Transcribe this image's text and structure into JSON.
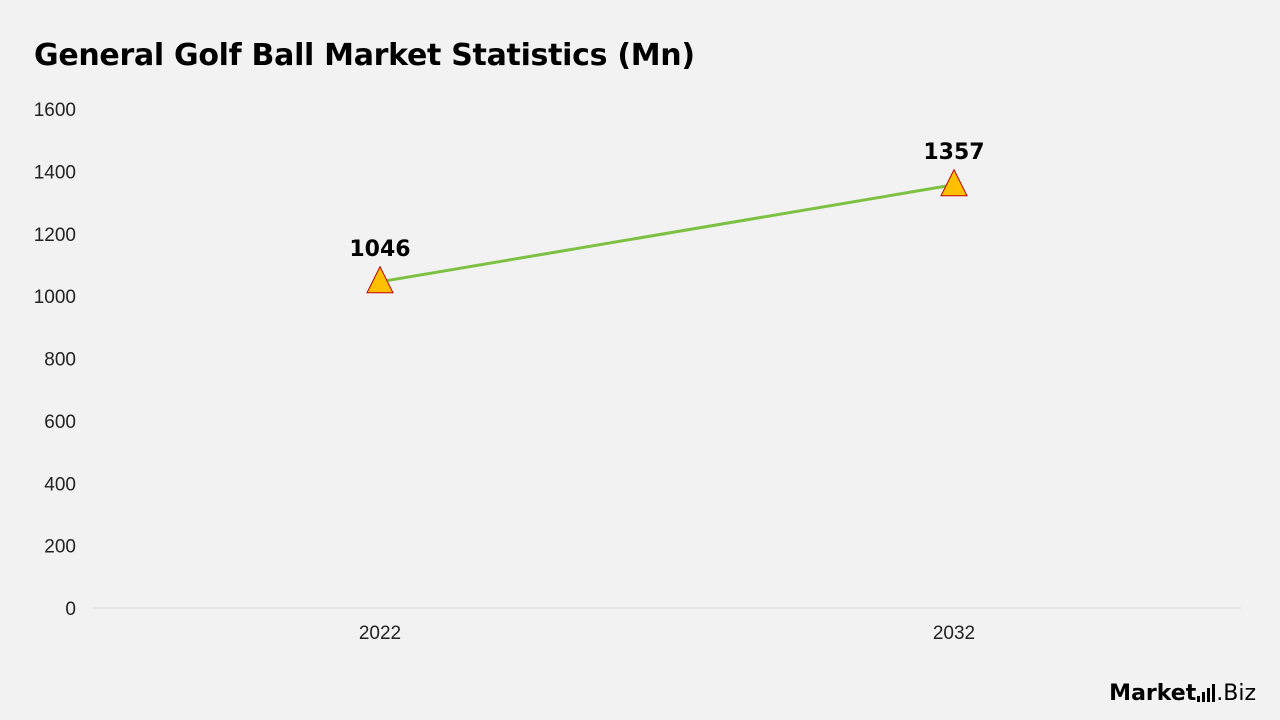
{
  "chart_data": {
    "type": "line",
    "title": "General Golf Ball Market Statistics (Mn)",
    "categories": [
      "2022",
      "2032"
    ],
    "series": [
      {
        "values": [
          1046,
          1357
        ],
        "color": "#7cc142",
        "marker": "triangle",
        "marker_fill": "#ffc000",
        "marker_stroke": "#c00000"
      }
    ],
    "ylim": [
      0,
      1600
    ],
    "yticks": [
      0,
      200,
      400,
      600,
      800,
      1000,
      1200,
      1400,
      1600
    ],
    "xlabel": "",
    "ylabel": "",
    "grid": false,
    "legend": "none"
  },
  "brand": {
    "name": "Market",
    "suffix": ".Biz"
  }
}
